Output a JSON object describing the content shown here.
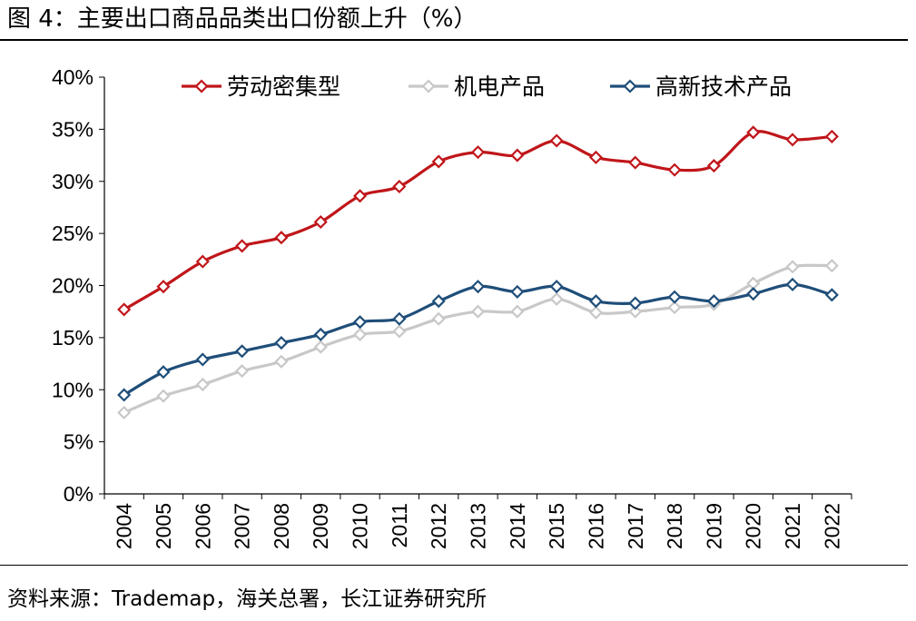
{
  "figure": {
    "title": "图 4：主要出口商品品类出口份额上升（%）",
    "source": "资料来源：Trademap，海关总署，长江证券研究所"
  },
  "chart_data": {
    "type": "line",
    "title": "",
    "xlabel": "",
    "ylabel": "",
    "x": [
      "2004",
      "2005",
      "2006",
      "2007",
      "2008",
      "2009",
      "2010",
      "2011",
      "2012",
      "2013",
      "2014",
      "2015",
      "2016",
      "2017",
      "2018",
      "2019",
      "2020",
      "2021",
      "2022"
    ],
    "ylim": [
      0,
      40
    ],
    "yticks": [
      0,
      5,
      10,
      15,
      20,
      25,
      30,
      35,
      40
    ],
    "ytick_labels": [
      "0%",
      "5%",
      "10%",
      "15%",
      "20%",
      "25%",
      "30%",
      "35%",
      "40%"
    ],
    "grid": false,
    "legend_position": "top",
    "series": [
      {
        "name": "劳动密集型",
        "color": "#c0161a",
        "values": [
          17.7,
          19.9,
          22.3,
          23.8,
          24.6,
          26.1,
          28.6,
          29.5,
          31.9,
          32.8,
          32.5,
          33.9,
          32.3,
          31.8,
          31.1,
          31.5,
          34.7,
          34.0,
          34.3
        ]
      },
      {
        "name": "机电产品",
        "color": "#c8c8c8",
        "values": [
          7.8,
          9.4,
          10.5,
          11.8,
          12.7,
          14.1,
          15.3,
          15.6,
          16.8,
          17.5,
          17.5,
          18.7,
          17.4,
          17.5,
          17.9,
          18.2,
          20.2,
          21.8,
          21.9
        ]
      },
      {
        "name": "高新技术产品",
        "color": "#1f4e79",
        "values": [
          9.5,
          11.7,
          12.9,
          13.7,
          14.5,
          15.3,
          16.5,
          16.8,
          18.5,
          19.9,
          19.4,
          19.9,
          18.5,
          18.3,
          18.9,
          18.5,
          19.2,
          20.1,
          19.1
        ]
      }
    ]
  }
}
